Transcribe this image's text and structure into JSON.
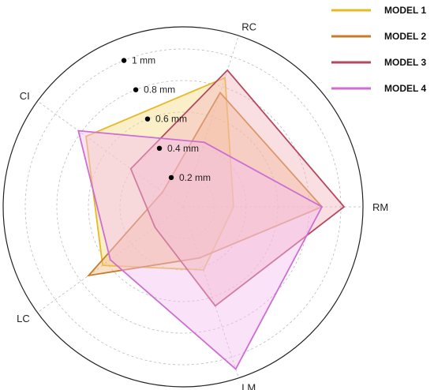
{
  "chart_data": {
    "type": "radar",
    "title": "",
    "axes": [
      "RC",
      "RM",
      "LM",
      "LC",
      "CI"
    ],
    "radial_unit": "mm",
    "rmax": 1.0,
    "ring_values": [
      0.2,
      0.4,
      0.6,
      0.8,
      1.0
    ],
    "ring_labels": [
      "0.2 mm",
      "0.4 mm",
      "0.6 mm",
      "0.8 mm",
      "1 mm"
    ],
    "grid": true,
    "legend_position": "top-right",
    "series": [
      {
        "name": "MODEL 1",
        "color": "#E8B923",
        "fill": "#F7DC8A",
        "values": [
          0.86,
          0.32,
          0.42,
          0.63,
          0.76
        ]
      },
      {
        "name": "MODEL 2",
        "color": "#C77C2A",
        "fill": "#F0BC86",
        "values": [
          0.76,
          0.88,
          0.34,
          0.74,
          0.16
        ]
      },
      {
        "name": "MODEL 3",
        "color": "#B5475F",
        "fill": "#F3B7BF",
        "values": [
          0.91,
          1.02,
          0.66,
          0.22,
          0.41
        ]
      },
      {
        "name": "MODEL 4",
        "color": "#CC6ED2",
        "fill": "#F4BEEF",
        "values": [
          0.43,
          0.88,
          1.08,
          0.57,
          0.82
        ]
      }
    ]
  }
}
